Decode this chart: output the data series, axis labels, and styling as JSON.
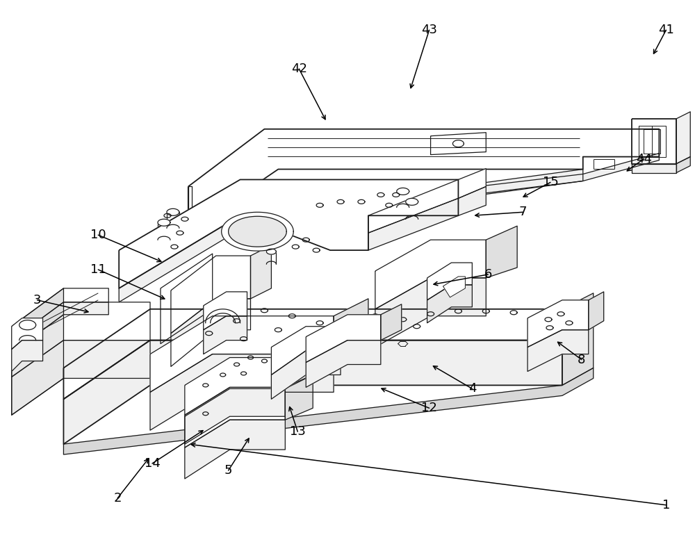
{
  "background_color": "#ffffff",
  "line_color": "#1a1a1a",
  "lw": 0.9,
  "lw_thick": 1.3,
  "label_fontsize": 13,
  "leaders": [
    [
      "41",
      960,
      42,
      940,
      80,
      "left"
    ],
    [
      "43",
      618,
      42,
      590,
      130,
      "left"
    ],
    [
      "42",
      430,
      98,
      470,
      175,
      "left"
    ],
    [
      "44",
      928,
      228,
      900,
      248,
      "left"
    ],
    [
      "15",
      793,
      262,
      750,
      285,
      "left"
    ],
    [
      "7",
      753,
      305,
      680,
      310,
      "left"
    ],
    [
      "10",
      140,
      338,
      235,
      378,
      "right"
    ],
    [
      "6",
      703,
      395,
      620,
      410,
      "left"
    ],
    [
      "11",
      140,
      388,
      240,
      432,
      "right"
    ],
    [
      "3",
      52,
      432,
      130,
      450,
      "right"
    ],
    [
      "8",
      838,
      518,
      800,
      490,
      "left"
    ],
    [
      "4",
      680,
      560,
      620,
      525,
      "left"
    ],
    [
      "12",
      618,
      588,
      545,
      558,
      "left"
    ],
    [
      "13",
      428,
      622,
      415,
      582,
      "left"
    ],
    [
      "5",
      328,
      678,
      360,
      628,
      "left"
    ],
    [
      "14",
      218,
      668,
      295,
      618,
      "right"
    ],
    [
      "2",
      168,
      718,
      215,
      658,
      "right"
    ],
    [
      "1",
      960,
      728,
      270,
      640,
      "left"
    ]
  ]
}
